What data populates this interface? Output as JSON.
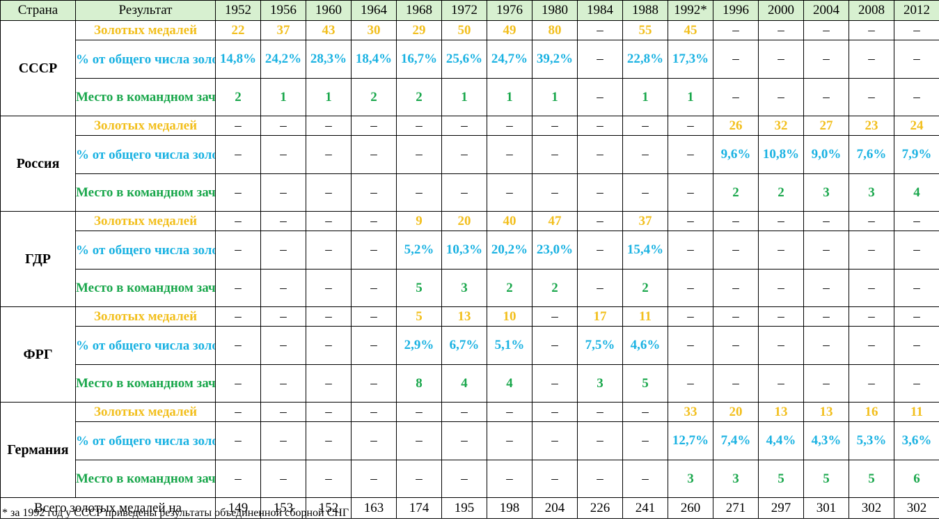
{
  "header": {
    "country": "Страна",
    "result": "Результат",
    "years": [
      "1952",
      "1956",
      "1960",
      "1964",
      "1968",
      "1972",
      "1976",
      "1980",
      "1984",
      "1988",
      "1992*",
      "1996",
      "2000",
      "2004",
      "2008",
      "2012"
    ]
  },
  "row_labels": {
    "gold": "Золотых медалей",
    "pct": "% от общего числа золотых медалей",
    "rank": "Место в командном зачете"
  },
  "colors": {
    "gold": "#f2bf1d",
    "pct": "#1ab2e2",
    "rank": "#1aa74c",
    "header_bg": "#d7f0d0"
  },
  "countries": [
    {
      "name": "СССР",
      "gold": [
        "22",
        "37",
        "43",
        "30",
        "29",
        "50",
        "49",
        "80",
        "–",
        "55",
        "45",
        "–",
        "–",
        "–",
        "–",
        "–"
      ],
      "pct": [
        "14,8%",
        "24,2%",
        "28,3%",
        "18,4%",
        "16,7%",
        "25,6%",
        "24,7%",
        "39,2%",
        "–",
        "22,8%",
        "17,3%",
        "–",
        "–",
        "–",
        "–",
        "–"
      ],
      "rank": [
        "2",
        "1",
        "1",
        "2",
        "2",
        "1",
        "1",
        "1",
        "–",
        "1",
        "1",
        "–",
        "–",
        "–",
        "–",
        "–"
      ]
    },
    {
      "name": "Россия",
      "gold": [
        "–",
        "–",
        "–",
        "–",
        "–",
        "–",
        "–",
        "–",
        "–",
        "–",
        "–",
        "26",
        "32",
        "27",
        "23",
        "24"
      ],
      "pct": [
        "–",
        "–",
        "–",
        "–",
        "–",
        "–",
        "–",
        "–",
        "–",
        "–",
        "–",
        "9,6%",
        "10,8%",
        "9,0%",
        "7,6%",
        "7,9%"
      ],
      "rank": [
        "–",
        "–",
        "–",
        "–",
        "–",
        "–",
        "–",
        "–",
        "–",
        "–",
        "–",
        "2",
        "2",
        "3",
        "3",
        "4"
      ]
    },
    {
      "name": "ГДР",
      "gold": [
        "–",
        "–",
        "–",
        "–",
        "9",
        "20",
        "40",
        "47",
        "–",
        "37",
        "–",
        "–",
        "–",
        "–",
        "–",
        "–"
      ],
      "pct": [
        "–",
        "–",
        "–",
        "–",
        "5,2%",
        "10,3%",
        "20,2%",
        "23,0%",
        "–",
        "15,4%",
        "–",
        "–",
        "–",
        "–",
        "–",
        "–"
      ],
      "rank": [
        "–",
        "–",
        "–",
        "–",
        "5",
        "3",
        "2",
        "2",
        "–",
        "2",
        "–",
        "–",
        "–",
        "–",
        "–",
        "–"
      ]
    },
    {
      "name": "ФРГ",
      "gold": [
        "–",
        "–",
        "–",
        "–",
        "5",
        "13",
        "10",
        "–",
        "17",
        "11",
        "–",
        "–",
        "–",
        "–",
        "–",
        "–"
      ],
      "pct": [
        "–",
        "–",
        "–",
        "–",
        "2,9%",
        "6,7%",
        "5,1%",
        "–",
        "7,5%",
        "4,6%",
        "–",
        "–",
        "–",
        "–",
        "–",
        "–"
      ],
      "rank": [
        "–",
        "–",
        "–",
        "–",
        "8",
        "4",
        "4",
        "–",
        "3",
        "5",
        "–",
        "–",
        "–",
        "–",
        "–",
        "–"
      ]
    },
    {
      "name": "Германия",
      "gold": [
        "–",
        "–",
        "–",
        "–",
        "–",
        "–",
        "–",
        "–",
        "–",
        "–",
        "33",
        "20",
        "13",
        "13",
        "16",
        "11"
      ],
      "pct": [
        "–",
        "–",
        "–",
        "–",
        "–",
        "–",
        "–",
        "–",
        "–",
        "–",
        "12,7%",
        "7,4%",
        "4,4%",
        "4,3%",
        "5,3%",
        "3,6%"
      ],
      "rank": [
        "–",
        "–",
        "–",
        "–",
        "–",
        "–",
        "–",
        "–",
        "–",
        "–",
        "3",
        "3",
        "5",
        "5",
        "5",
        "6"
      ]
    }
  ],
  "total": {
    "label": "Всего золотых медалей на",
    "values": [
      "149",
      "153",
      "152",
      "163",
      "174",
      "195",
      "198",
      "204",
      "226",
      "241",
      "260",
      "271",
      "297",
      "301",
      "302",
      "302"
    ]
  },
  "footnote": "* за 1992 год у СССР приведены результаты объединенной сборной СНГ"
}
